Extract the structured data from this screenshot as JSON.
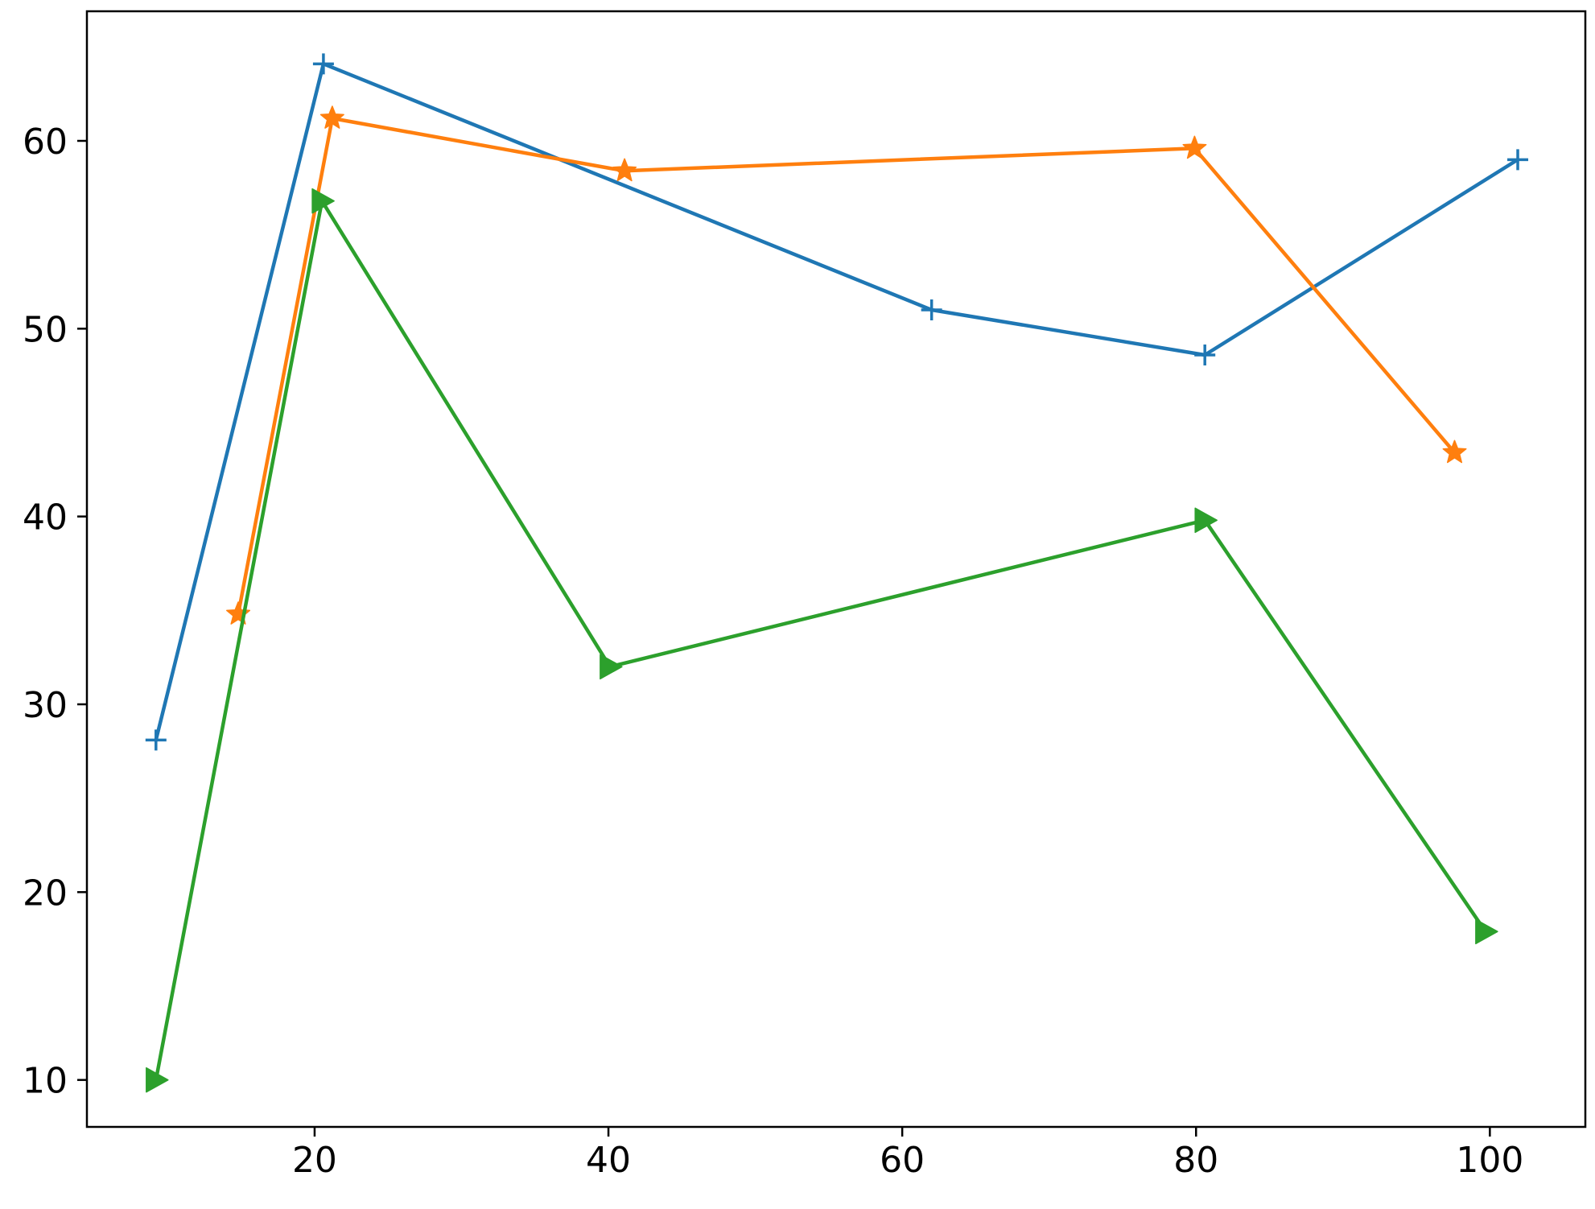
{
  "chart_data": {
    "type": "line",
    "title": "",
    "xlabel": "",
    "ylabel": "",
    "xlim": [
      4.5,
      106.5
    ],
    "ylim": [
      7.5,
      66.9
    ],
    "x_ticks": [
      20,
      40,
      60,
      80,
      100
    ],
    "y_ticks": [
      10,
      20,
      30,
      40,
      50,
      60
    ],
    "x_tick_labels": [
      "20",
      "40",
      "60",
      "80",
      "100"
    ],
    "y_tick_labels": [
      "10",
      "20",
      "30",
      "40",
      "50",
      "60"
    ],
    "grid": false,
    "legend": "none",
    "series": [
      {
        "color": "#1f77b4",
        "marker": "plus",
        "points": [
          {
            "x": 9.2,
            "y": 28.1
          },
          {
            "x": 20.6,
            "y": 64.1
          },
          {
            "x": 62.0,
            "y": 51.0
          },
          {
            "x": 80.6,
            "y": 48.6
          },
          {
            "x": 101.9,
            "y": 59.0
          }
        ]
      },
      {
        "color": "#ff7f0e",
        "marker": "star",
        "points": [
          {
            "x": 14.8,
            "y": 34.8
          },
          {
            "x": 21.2,
            "y": 61.2
          },
          {
            "x": 41.1,
            "y": 58.4
          },
          {
            "x": 79.9,
            "y": 59.6
          },
          {
            "x": 97.6,
            "y": 43.4
          }
        ]
      },
      {
        "color": "#2ca02c",
        "marker": "triangle-right",
        "points": [
          {
            "x": 9.2,
            "y": 10.0
          },
          {
            "x": 20.5,
            "y": 56.8
          },
          {
            "x": 40.1,
            "y": 32.0
          },
          {
            "x": 80.6,
            "y": 39.8
          },
          {
            "x": 99.7,
            "y": 17.9
          }
        ]
      }
    ]
  }
}
